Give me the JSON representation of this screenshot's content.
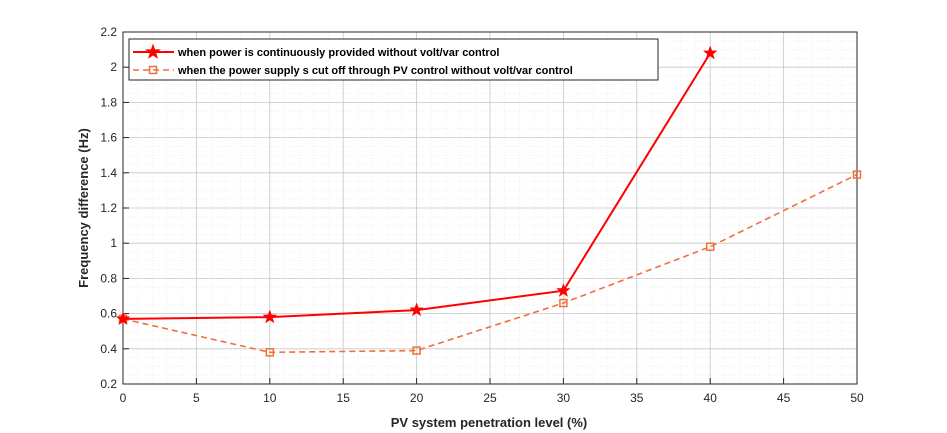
{
  "chart_data": {
    "type": "line",
    "title": "",
    "xlabel": "PV system penetration level (%)",
    "ylabel": "Frequency difference (Hz)",
    "xlim": [
      0,
      50
    ],
    "ylim": [
      0.2,
      2.2
    ],
    "xticks": [
      0,
      5,
      10,
      15,
      20,
      25,
      30,
      35,
      40,
      45,
      50
    ],
    "yticks": [
      0.2,
      0.4,
      0.6,
      0.8,
      1,
      1.2,
      1.4,
      1.6,
      1.8,
      2,
      2.2
    ],
    "xtick_labels": [
      "0",
      "5",
      "10",
      "15",
      "20",
      "25",
      "30",
      "35",
      "40",
      "45",
      "50"
    ],
    "ytick_labels": [
      "0.2",
      "0.4",
      "0.6",
      "0.8",
      "1",
      "1.2",
      "1.4",
      "1.6",
      "1.8",
      "2",
      "2.2"
    ],
    "grid": true,
    "minor_grid": true,
    "legend_position": "top-left",
    "series": [
      {
        "name": "when power is continuously provided without volt/var control",
        "x": [
          0,
          10,
          20,
          30,
          40
        ],
        "values": [
          0.57,
          0.58,
          0.62,
          0.73,
          2.08
        ],
        "color": "#ff0000",
        "line_style": "solid",
        "marker": "star"
      },
      {
        "name": "when the power supply s cut off through PV control without volt/var control",
        "x": [
          0,
          10,
          20,
          30,
          40,
          50
        ],
        "values": [
          0.57,
          0.38,
          0.39,
          0.66,
          0.98,
          1.39
        ],
        "color": "#f0703c",
        "line_style": "dashed",
        "marker": "square"
      }
    ]
  }
}
